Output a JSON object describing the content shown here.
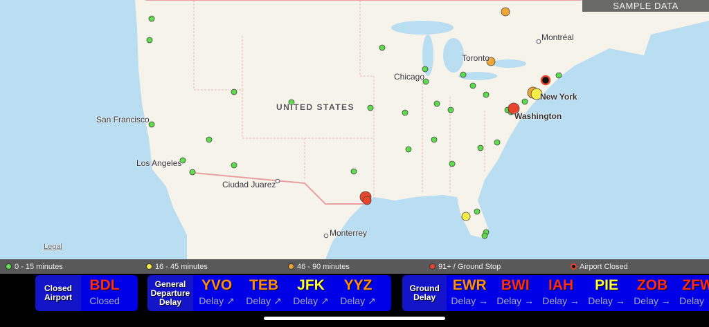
{
  "map": {
    "badge": "SAMPLE DATA",
    "legal": "Legal",
    "country_label": "UNITED STATES",
    "cities": [
      "Montréal",
      "Toronto",
      "Chicago",
      "New York",
      "Washington",
      "San Francisco",
      "Los Angeles",
      "Ciudad Juarez",
      "Monterrey"
    ],
    "airport_markers": [
      {
        "status": "green",
        "count_note": ""
      }
    ]
  },
  "legend": [
    {
      "label": "0 - 15 minutes",
      "color": "#5ddc4c"
    },
    {
      "label": "16 - 45 minutes",
      "color": "#f5ee46"
    },
    {
      "label": "46 - 90 minutes",
      "color": "#f0a637"
    },
    {
      "label": "91+ / Ground Stop",
      "color": "#e8452c"
    },
    {
      "label": "Airport Closed",
      "color": "#111111"
    }
  ],
  "status_bar": {
    "groups": [
      {
        "title": "Closed Airport",
        "items": [
          {
            "code": "BDL",
            "status": "Closed",
            "color": "#ff2a1a"
          }
        ]
      },
      {
        "title": "General Departure Delay",
        "items": [
          {
            "code": "YVO",
            "status": "Delay ↗",
            "color": "#ff8c1a"
          },
          {
            "code": "TEB",
            "status": "Delay ↗",
            "color": "#ff8c1a"
          },
          {
            "code": "JFK",
            "status": "Delay ↗",
            "color": "#ffff33"
          },
          {
            "code": "YYZ",
            "status": "Delay ↗",
            "color": "#ff8c1a"
          }
        ]
      },
      {
        "title": "Ground Delay",
        "items": [
          {
            "code": "EWR",
            "status": "Delay →",
            "color": "#ff8c1a"
          },
          {
            "code": "BWI",
            "status": "Delay →",
            "color": "#ff2a1a"
          },
          {
            "code": "IAH",
            "status": "Delay →",
            "color": "#ff2a1a"
          },
          {
            "code": "PIE",
            "status": "Delay →",
            "color": "#ffff33"
          },
          {
            "code": "ZOB",
            "status": "Delay →",
            "color": "#ff2a1a"
          },
          {
            "code": "ZFW",
            "status": "Delay →",
            "color": "#ff2a1a"
          }
        ]
      }
    ]
  }
}
